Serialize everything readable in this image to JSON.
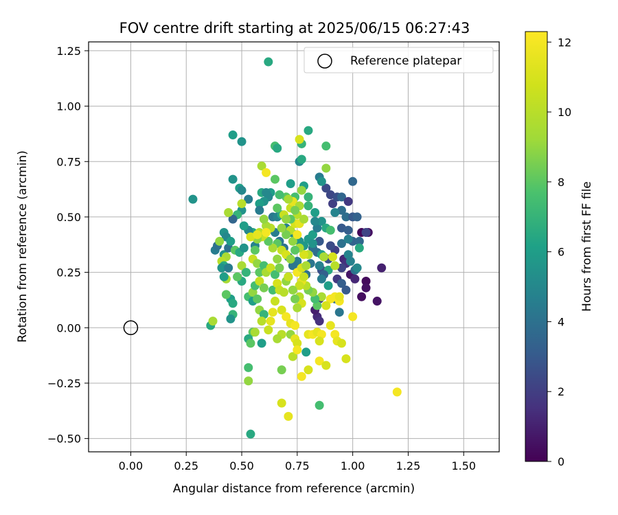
{
  "chart_data": {
    "type": "scatter",
    "title": "FOV centre drift starting at 2025/06/15 06:27:43",
    "xlabel": "Angular distance from reference (arcmin)",
    "ylabel": "Rotation from reference (arcmin)",
    "xlim": [
      -0.19,
      1.66
    ],
    "ylim": [
      -0.56,
      1.29
    ],
    "x_ticks": [
      0.0,
      0.25,
      0.5,
      0.75,
      1.0,
      1.25,
      1.5
    ],
    "x_tick_labels": [
      "0.00",
      "0.25",
      "0.50",
      "0.75",
      "1.00",
      "1.25",
      "1.50"
    ],
    "y_ticks": [
      -0.5,
      -0.25,
      0.0,
      0.25,
      0.5,
      0.75,
      1.0,
      1.25
    ],
    "y_tick_labels": [
      "−0.50",
      "−0.25",
      "0.00",
      "0.25",
      "0.50",
      "0.75",
      "1.00",
      "1.25"
    ],
    "grid": true,
    "legend": {
      "position": "top-right",
      "entries": [
        "Reference platepar"
      ]
    },
    "reference_point": {
      "x": 0.0,
      "y": 0.0
    },
    "colorbar": {
      "label": "Hours from first FF file",
      "colormap": "viridis",
      "range": [
        0,
        12.3
      ],
      "ticks": [
        0,
        2,
        4,
        6,
        8,
        10,
        12
      ],
      "tick_labels": [
        "0",
        "2",
        "4",
        "6",
        "8",
        "10",
        "12"
      ]
    },
    "points": [
      [
        1.04,
        0.43,
        0.2
      ],
      [
        1.07,
        0.43,
        0.5
      ],
      [
        1.13,
        0.27,
        1.0
      ],
      [
        1.06,
        0.21,
        0.3
      ],
      [
        1.06,
        0.18,
        0.5
      ],
      [
        1.11,
        0.12,
        0.6
      ],
      [
        1.04,
        0.14,
        0.4
      ],
      [
        0.99,
        0.24,
        0.7
      ],
      [
        1.01,
        0.22,
        1.2
      ],
      [
        0.96,
        0.31,
        1.2
      ],
      [
        0.97,
        0.29,
        1.5
      ],
      [
        0.95,
        0.27,
        2.2
      ],
      [
        0.93,
        0.22,
        1.8
      ],
      [
        0.89,
        0.31,
        2.8
      ],
      [
        0.92,
        0.35,
        2.0
      ],
      [
        0.9,
        0.37,
        2.5
      ],
      [
        0.87,
        0.32,
        2.3
      ],
      [
        0.85,
        0.39,
        3.0
      ],
      [
        0.86,
        0.26,
        2.6
      ],
      [
        0.84,
        0.05,
        1.3
      ],
      [
        0.85,
        0.03,
        1.5
      ],
      [
        0.83,
        0.08,
        0.9
      ],
      [
        0.85,
        0.13,
        1.8
      ],
      [
        0.88,
        0.63,
        2.4
      ],
      [
        0.9,
        0.6,
        2.3
      ],
      [
        0.91,
        0.56,
        2.0
      ],
      [
        0.93,
        0.59,
        2.6
      ],
      [
        0.95,
        0.59,
        3.5
      ],
      [
        0.98,
        0.57,
        1.8
      ],
      [
        0.95,
        0.53,
        3.8
      ],
      [
        0.92,
        0.52,
        4.8
      ],
      [
        0.97,
        0.5,
        3.8
      ],
      [
        1.0,
        0.5,
        3.0
      ],
      [
        1.02,
        0.5,
        3.4
      ],
      [
        1.0,
        0.66,
        3.6
      ],
      [
        1.06,
        0.43,
        2.2
      ],
      [
        0.95,
        0.45,
        3.0
      ],
      [
        0.98,
        0.44,
        3.2
      ],
      [
        1.0,
        0.39,
        3.4
      ],
      [
        1.03,
        0.39,
        3.6
      ],
      [
        0.95,
        0.38,
        4.0
      ],
      [
        0.98,
        0.4,
        4.6
      ],
      [
        0.98,
        0.33,
        4.8
      ],
      [
        0.99,
        0.3,
        4.7
      ],
      [
        1.01,
        0.26,
        4.0
      ],
      [
        1.02,
        0.27,
        5.0
      ],
      [
        1.03,
        0.36,
        6.5
      ],
      [
        0.95,
        0.2,
        3.2
      ],
      [
        0.97,
        0.17,
        3.0
      ],
      [
        0.94,
        0.07,
        4.2
      ],
      [
        0.92,
        0.13,
        4.0
      ],
      [
        0.89,
        0.19,
        6.0
      ],
      [
        0.89,
        0.26,
        6.5
      ],
      [
        0.87,
        0.24,
        3.3
      ],
      [
        0.86,
        0.22,
        4.5
      ],
      [
        0.85,
        0.28,
        4.7
      ],
      [
        0.84,
        0.34,
        3.8
      ],
      [
        0.82,
        0.36,
        3.9
      ],
      [
        0.81,
        0.29,
        4.2
      ],
      [
        0.79,
        0.24,
        4.0
      ],
      [
        0.77,
        0.27,
        5.0
      ],
      [
        0.75,
        0.3,
        4.5
      ],
      [
        0.73,
        0.28,
        4.2
      ],
      [
        0.71,
        0.23,
        5.2
      ],
      [
        0.71,
        0.32,
        4.6
      ],
      [
        0.69,
        0.36,
        4.0
      ],
      [
        0.67,
        0.39,
        4.2
      ],
      [
        0.65,
        0.43,
        4.5
      ],
      [
        0.64,
        0.5,
        4.3
      ],
      [
        0.66,
        0.5,
        4.8
      ],
      [
        0.7,
        0.45,
        4.6
      ],
      [
        0.72,
        0.43,
        5.0
      ],
      [
        0.74,
        0.42,
        5.2
      ],
      [
        0.76,
        0.39,
        5.5
      ],
      [
        0.78,
        0.37,
        5.7
      ],
      [
        0.8,
        0.4,
        5.8
      ],
      [
        0.82,
        0.42,
        6.0
      ],
      [
        0.84,
        0.45,
        4.5
      ],
      [
        0.86,
        0.48,
        5.5
      ],
      [
        0.88,
        0.45,
        6.5
      ],
      [
        0.9,
        0.44,
        7.5
      ],
      [
        0.85,
        0.68,
        4.5
      ],
      [
        0.86,
        0.66,
        5.5
      ],
      [
        0.8,
        0.59,
        7.0
      ],
      [
        0.78,
        0.64,
        6.0
      ],
      [
        0.76,
        0.75,
        5.0
      ],
      [
        0.77,
        0.76,
        6.5
      ],
      [
        0.74,
        0.59,
        7.5
      ],
      [
        0.72,
        0.65,
        6.0
      ],
      [
        0.7,
        0.59,
        8.0
      ],
      [
        0.67,
        0.6,
        7.5
      ],
      [
        0.68,
        0.51,
        6.5
      ],
      [
        0.66,
        0.54,
        8.0
      ],
      [
        0.63,
        0.61,
        6.0
      ],
      [
        0.62,
        0.59,
        5.0
      ],
      [
        0.6,
        0.57,
        5.5
      ],
      [
        0.58,
        0.56,
        6.0
      ],
      [
        0.58,
        0.53,
        4.5
      ],
      [
        0.55,
        0.43,
        6.5
      ],
      [
        0.56,
        0.37,
        4.8
      ],
      [
        0.53,
        0.44,
        5.0
      ],
      [
        0.51,
        0.46,
        6.0
      ],
      [
        0.5,
        0.53,
        5.5
      ],
      [
        0.48,
        0.51,
        7.0
      ],
      [
        0.46,
        0.67,
        5.5
      ],
      [
        0.49,
        0.63,
        6.0
      ],
      [
        0.5,
        0.62,
        5.0
      ],
      [
        0.53,
        0.58,
        4.5
      ],
      [
        0.59,
        0.61,
        6.5
      ],
      [
        0.61,
        0.61,
        5.0
      ],
      [
        0.46,
        0.87,
        6.0
      ],
      [
        0.5,
        0.84,
        5.5
      ],
      [
        0.65,
        0.82,
        7.5
      ],
      [
        0.66,
        0.81,
        6.5
      ],
      [
        0.77,
        0.83,
        7.0
      ],
      [
        0.8,
        0.89,
        6.5
      ],
      [
        0.88,
        0.82,
        7.5
      ],
      [
        0.88,
        0.72,
        9.0
      ],
      [
        0.76,
        0.85,
        11.0
      ],
      [
        0.59,
        0.73,
        9.5
      ],
      [
        0.61,
        0.7,
        12.0
      ],
      [
        0.65,
        0.67,
        8.0
      ],
      [
        0.62,
        1.2,
        6.5
      ],
      [
        0.28,
        0.58,
        5.5
      ],
      [
        0.46,
        0.49,
        3.5
      ],
      [
        0.42,
        0.43,
        5.5
      ],
      [
        0.43,
        0.41,
        5.0
      ],
      [
        0.38,
        0.35,
        4.5
      ],
      [
        0.39,
        0.37,
        4.0
      ],
      [
        0.4,
        0.39,
        9.0
      ],
      [
        0.42,
        0.33,
        5.5
      ],
      [
        0.44,
        0.36,
        4.0
      ],
      [
        0.45,
        0.39,
        6.0
      ],
      [
        0.47,
        0.35,
        8.0
      ],
      [
        0.49,
        0.34,
        6.5
      ],
      [
        0.51,
        0.36,
        5.5
      ],
      [
        0.43,
        0.32,
        9.5
      ],
      [
        0.41,
        0.3,
        10.0
      ],
      [
        0.42,
        0.28,
        6.5
      ],
      [
        0.41,
        0.27,
        5.5
      ],
      [
        0.44,
        0.27,
        4.5
      ],
      [
        0.43,
        0.22,
        9.5
      ],
      [
        0.42,
        0.23,
        6.0
      ],
      [
        0.5,
        0.28,
        9.5
      ],
      [
        0.52,
        0.25,
        7.0
      ],
      [
        0.5,
        0.21,
        6.5
      ],
      [
        0.48,
        0.23,
        8.0
      ],
      [
        0.45,
        0.13,
        6.0
      ],
      [
        0.46,
        0.11,
        6.5
      ],
      [
        0.43,
        0.15,
        8.0
      ],
      [
        0.46,
        0.06,
        7.0
      ],
      [
        0.45,
        0.04,
        5.5
      ],
      [
        0.36,
        0.01,
        6.5
      ],
      [
        0.37,
        0.03,
        9.5
      ],
      [
        0.53,
        0.14,
        7.5
      ],
      [
        0.55,
        0.12,
        6.0
      ],
      [
        0.55,
        0.16,
        9.0
      ],
      [
        0.57,
        0.13,
        8.0
      ],
      [
        0.56,
        0.19,
        7.5
      ],
      [
        0.58,
        0.21,
        10.5
      ],
      [
        0.6,
        0.18,
        8.5
      ],
      [
        0.58,
        0.08,
        9.0
      ],
      [
        0.6,
        0.06,
        7.0
      ],
      [
        0.59,
        0.03,
        10.0
      ],
      [
        0.55,
        -0.02,
        8.0
      ],
      [
        0.53,
        -0.05,
        6.5
      ],
      [
        0.54,
        -0.07,
        8.0
      ],
      [
        0.56,
        -0.02,
        9.5
      ],
      [
        0.59,
        -0.07,
        6.0
      ],
      [
        0.53,
        -0.18,
        7.5
      ],
      [
        0.53,
        -0.24,
        9.0
      ],
      [
        0.54,
        -0.48,
        6.5
      ],
      [
        0.62,
        -0.01,
        10.5
      ],
      [
        0.63,
        0.03,
        11.5
      ],
      [
        0.64,
        0.07,
        11.5
      ],
      [
        0.65,
        0.12,
        10.5
      ],
      [
        0.64,
        0.17,
        7.5
      ],
      [
        0.66,
        0.2,
        11.0
      ],
      [
        0.67,
        0.17,
        10.5
      ],
      [
        0.69,
        0.16,
        10.0
      ],
      [
        0.7,
        0.21,
        9.0
      ],
      [
        0.71,
        0.23,
        10.5
      ],
      [
        0.68,
        0.08,
        11.0
      ],
      [
        0.7,
        0.05,
        12.0
      ],
      [
        0.72,
        0.02,
        11.5
      ],
      [
        0.74,
        0.01,
        12.0
      ],
      [
        0.72,
        -0.03,
        9.0
      ],
      [
        0.74,
        -0.05,
        11.5
      ],
      [
        0.75,
        -0.07,
        11.0
      ],
      [
        0.73,
        -0.13,
        10.0
      ],
      [
        0.75,
        -0.1,
        12.0
      ],
      [
        0.68,
        -0.03,
        10.0
      ],
      [
        0.66,
        -0.05,
        9.5
      ],
      [
        0.68,
        -0.19,
        8.5
      ],
      [
        0.68,
        -0.34,
        11.0
      ],
      [
        0.71,
        -0.4,
        11.5
      ],
      [
        0.77,
        -0.22,
        12.0
      ],
      [
        0.8,
        -0.19,
        11.0
      ],
      [
        0.79,
        -0.11,
        6.0
      ],
      [
        0.8,
        -0.03,
        11.5
      ],
      [
        0.82,
        -0.03,
        12.0
      ],
      [
        0.84,
        -0.02,
        11.5
      ],
      [
        0.86,
        -0.03,
        12.0
      ],
      [
        0.85,
        -0.06,
        11.0
      ],
      [
        0.85,
        -0.15,
        12.0
      ],
      [
        0.88,
        -0.17,
        11.0
      ],
      [
        0.85,
        -0.35,
        7.5
      ],
      [
        0.9,
        0.01,
        11.5
      ],
      [
        0.92,
        -0.03,
        12.0
      ],
      [
        0.93,
        -0.06,
        11.5
      ],
      [
        0.95,
        -0.07,
        11.0
      ],
      [
        0.97,
        -0.14,
        11.0
      ],
      [
        1.0,
        0.05,
        12.0
      ],
      [
        1.2,
        -0.29,
        12.0
      ],
      [
        0.9,
        0.13,
        12.0
      ],
      [
        0.92,
        0.14,
        12.0
      ],
      [
        0.94,
        0.12,
        12.0
      ],
      [
        0.94,
        0.14,
        11.5
      ],
      [
        0.88,
        0.1,
        11.0
      ],
      [
        0.86,
        0.14,
        9.5
      ],
      [
        0.84,
        0.1,
        8.0
      ],
      [
        0.83,
        0.13,
        7.5
      ],
      [
        0.82,
        0.16,
        9.0
      ],
      [
        0.8,
        0.17,
        8.5
      ],
      [
        0.79,
        0.19,
        10.0
      ],
      [
        0.77,
        0.21,
        11.5
      ],
      [
        0.76,
        0.19,
        10.5
      ],
      [
        0.76,
        0.14,
        10.0
      ],
      [
        0.77,
        0.11,
        11.0
      ],
      [
        0.75,
        0.09,
        9.5
      ],
      [
        0.74,
        0.13,
        8.5
      ],
      [
        0.73,
        0.17,
        9.0
      ],
      [
        0.75,
        0.25,
        12.0
      ],
      [
        0.77,
        0.27,
        11.0
      ],
      [
        0.78,
        0.23,
        10.5
      ],
      [
        0.79,
        0.28,
        9.5
      ],
      [
        0.8,
        0.33,
        10.0
      ],
      [
        0.78,
        0.33,
        11.0
      ],
      [
        0.76,
        0.36,
        9.5
      ],
      [
        0.74,
        0.35,
        8.0
      ],
      [
        0.73,
        0.39,
        9.0
      ],
      [
        0.72,
        0.44,
        10.0
      ],
      [
        0.74,
        0.47,
        11.0
      ],
      [
        0.75,
        0.51,
        10.0
      ],
      [
        0.76,
        0.47,
        11.5
      ],
      [
        0.75,
        0.42,
        12.0
      ],
      [
        0.7,
        0.42,
        8.5
      ],
      [
        0.68,
        0.45,
        9.0
      ],
      [
        0.66,
        0.38,
        8.0
      ],
      [
        0.64,
        0.36,
        9.5
      ],
      [
        0.62,
        0.39,
        8.0
      ],
      [
        0.6,
        0.42,
        11.0
      ],
      [
        0.59,
        0.41,
        10.5
      ],
      [
        0.58,
        0.43,
        10.0
      ],
      [
        0.57,
        0.4,
        9.0
      ],
      [
        0.56,
        0.35,
        8.0
      ],
      [
        0.55,
        0.31,
        10.5
      ],
      [
        0.57,
        0.29,
        9.0
      ],
      [
        0.58,
        0.25,
        8.0
      ],
      [
        0.6,
        0.28,
        7.5
      ],
      [
        0.61,
        0.25,
        9.5
      ],
      [
        0.63,
        0.27,
        10.5
      ],
      [
        0.65,
        0.24,
        7.5
      ],
      [
        0.67,
        0.27,
        8.5
      ],
      [
        0.66,
        0.31,
        9.0
      ],
      [
        0.68,
        0.35,
        10.5
      ],
      [
        0.7,
        0.33,
        11.0
      ],
      [
        0.72,
        0.31,
        9.0
      ],
      [
        0.72,
        0.54,
        10.5
      ],
      [
        0.73,
        0.57,
        11.5
      ],
      [
        0.76,
        0.55,
        9.5
      ],
      [
        0.74,
        0.53,
        8.5
      ],
      [
        0.77,
        0.62,
        9.0
      ],
      [
        0.71,
        0.58,
        9.5
      ],
      [
        0.69,
        0.51,
        10.5
      ],
      [
        0.72,
        0.49,
        8.0
      ],
      [
        0.7,
        0.49,
        9.0
      ],
      [
        0.78,
        0.49,
        9.5
      ],
      [
        0.63,
        0.45,
        10.0
      ],
      [
        0.61,
        0.46,
        9.5
      ],
      [
        0.6,
        0.49,
        9.0
      ],
      [
        0.5,
        0.56,
        10.0
      ],
      [
        0.44,
        0.52,
        9.5
      ],
      [
        0.54,
        0.41,
        11.0
      ],
      [
        0.57,
        0.42,
        11.5
      ],
      [
        0.61,
        0.43,
        12.0
      ],
      [
        0.83,
        0.52,
        6.0
      ],
      [
        0.8,
        0.55,
        7.0
      ],
      [
        0.83,
        0.48,
        5.0
      ],
      [
        0.82,
        0.38,
        5.5
      ],
      [
        0.86,
        0.33,
        6.0
      ],
      [
        0.87,
        0.32,
        9.5
      ],
      [
        0.91,
        0.32,
        11.0
      ],
      [
        0.92,
        0.28,
        10.0
      ]
    ]
  }
}
